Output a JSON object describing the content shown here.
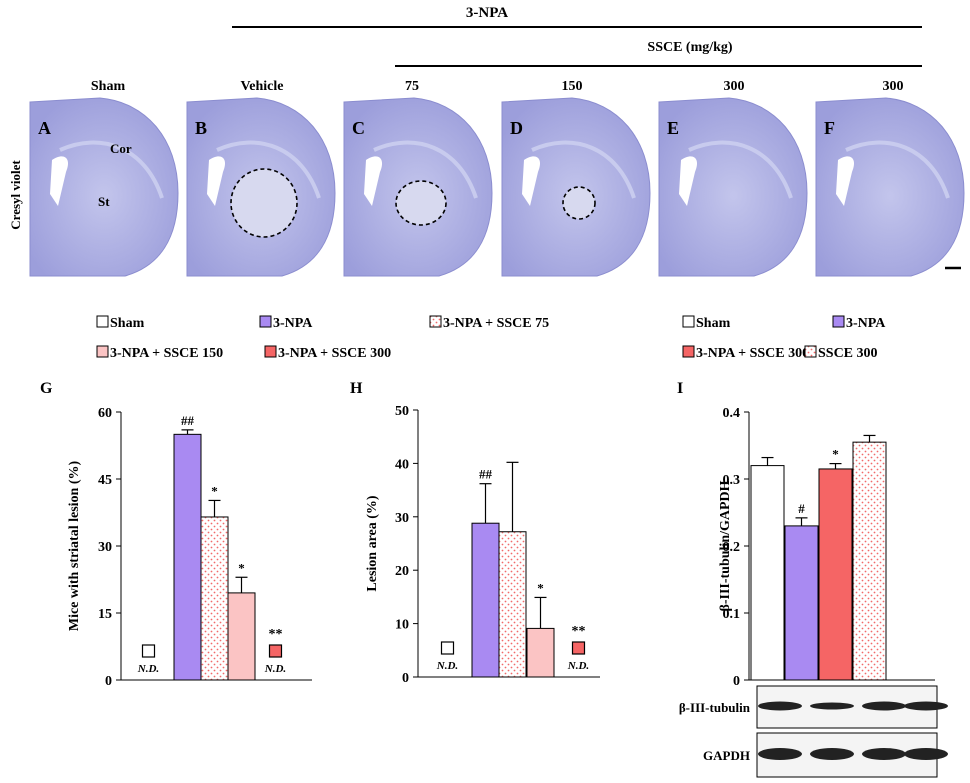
{
  "top": {
    "npa_label": "3-NPA",
    "ssce_label": "SSCE (mg/kg)",
    "stain_label": "Cresyl violet",
    "groups": [
      "Sham",
      "Vehicle",
      "75",
      "150",
      "300",
      "300"
    ],
    "panel_letters": [
      "A",
      "B",
      "C",
      "D",
      "E",
      "F"
    ],
    "region_cor": "Cor",
    "region_st": "St"
  },
  "colors": {
    "white": "#ffffff",
    "purple": "#a98af2",
    "dots": "#f26a6a",
    "pink": "#fbc4c4",
    "red": "#f56565",
    "brain": "#a6a6df",
    "brain_light": "#cfd1ee"
  },
  "legend_left": [
    {
      "label": "Sham",
      "fill": "white"
    },
    {
      "label": "3-NPA",
      "fill": "purple"
    },
    {
      "label": "3-NPA + SSCE 75",
      "fill": "dots"
    },
    {
      "label": "3-NPA + SSCE 150",
      "fill": "pink"
    },
    {
      "label": "3-NPA + SSCE 300",
      "fill": "red"
    }
  ],
  "legend_right": [
    {
      "label": "Sham",
      "fill": "white"
    },
    {
      "label": "3-NPA",
      "fill": "purple"
    },
    {
      "label": "3-NPA + SSCE 300",
      "fill": "red"
    },
    {
      "label": "SSCE 300",
      "fill": "dots"
    }
  ],
  "blots": {
    "row1_label": "β-III-tubulin",
    "row2_label": "GAPDH"
  },
  "chart_data": [
    {
      "panel": "G",
      "type": "bar",
      "ylabel": "Mice with  striatal lesion (%)",
      "ylim": [
        0,
        60
      ],
      "yticks": [
        0,
        15,
        30,
        45,
        60
      ],
      "categories": [
        "Sham",
        "3-NPA",
        "3-NPA + SSCE 75",
        "3-NPA + SSCE 150",
        "3-NPA + SSCE 300"
      ],
      "fills": [
        "white",
        "purple",
        "dots",
        "pink",
        "red"
      ],
      "values": [
        null,
        55,
        36.5,
        19.5,
        null
      ],
      "errors": [
        null,
        1,
        3.7,
        3.5,
        null
      ],
      "annotations": [
        "",
        "##",
        "*",
        "*",
        "**"
      ],
      "nd_label": "N.D."
    },
    {
      "panel": "H",
      "type": "bar",
      "ylabel": "Lesion area (%)",
      "ylim": [
        0,
        50
      ],
      "yticks": [
        0,
        10,
        20,
        30,
        40,
        50
      ],
      "categories": [
        "Sham",
        "3-NPA",
        "3-NPA + SSCE 75",
        "3-NPA + SSCE 150",
        "3-NPA + SSCE 300"
      ],
      "fills": [
        "white",
        "purple",
        "dots",
        "pink",
        "red"
      ],
      "values": [
        null,
        28.8,
        27.2,
        9.1,
        null
      ],
      "errors": [
        null,
        7.4,
        13,
        5.8,
        null
      ],
      "annotations": [
        "",
        "##",
        "",
        "*",
        "**"
      ],
      "nd_label": "N.D."
    },
    {
      "panel": "I",
      "type": "bar",
      "ylabel": "β-III-tubulin/GAPDH",
      "ylim": [
        0,
        0.4
      ],
      "yticks": [
        0,
        0.1,
        0.2,
        0.3,
        0.4
      ],
      "categories": [
        "Sham",
        "3-NPA",
        "3-NPA + SSCE 300",
        "SSCE 300"
      ],
      "fills": [
        "white",
        "purple",
        "red",
        "dots"
      ],
      "values": [
        0.32,
        0.23,
        0.315,
        0.355
      ],
      "errors": [
        0.012,
        0.012,
        0.008,
        0.01
      ],
      "annotations": [
        "",
        "#",
        "*",
        ""
      ]
    }
  ]
}
